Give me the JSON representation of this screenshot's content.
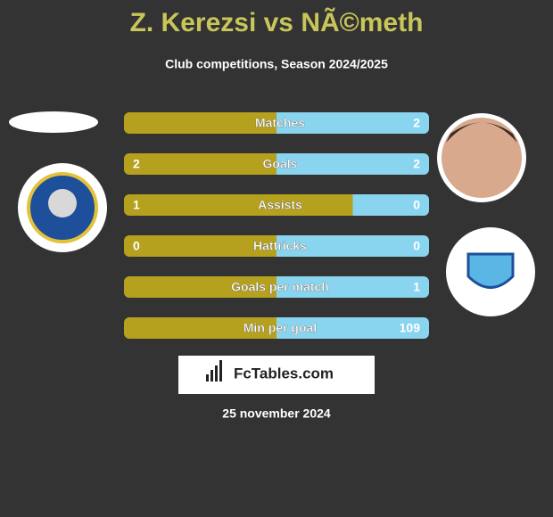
{
  "header": {
    "title": "Z. Kerezsi vs NÃ©meth",
    "subtitle": "Club competitions, Season 2024/2025"
  },
  "rows": [
    {
      "label": "Matches",
      "left": null,
      "right": 2
    },
    {
      "label": "Goals",
      "left": 2,
      "right": 2
    },
    {
      "label": "Assists",
      "left": 1,
      "right": 0
    },
    {
      "label": "Hattricks",
      "left": 0,
      "right": 0
    },
    {
      "label": "Goals per match",
      "left": null,
      "right": 1
    },
    {
      "label": "Min per goal",
      "left": null,
      "right": 109
    }
  ],
  "colors": {
    "left": "#b5a11e",
    "right": "#89d4ef"
  },
  "footer": {
    "brand": "FcTables.com",
    "date": "25 november 2024"
  }
}
